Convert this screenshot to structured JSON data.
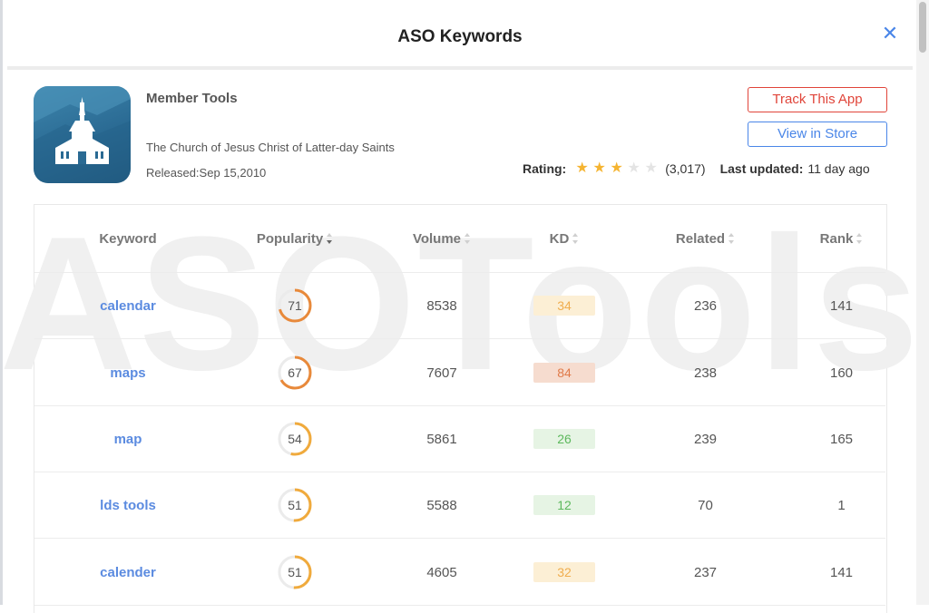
{
  "modal": {
    "title": "ASO Keywords",
    "close_icon": "close-icon"
  },
  "app": {
    "name": "Member Tools",
    "developer": "The Church of Jesus Christ of Latter-day Saints",
    "released": "Released:Sep 15,2010",
    "icon": "church-app-icon",
    "rating_label": "Rating:",
    "rating_stars": 3,
    "rating_max": 5,
    "rating_count": "(3,017)",
    "updated_label": "Last updated:",
    "updated_value": "11 day ago"
  },
  "actions": {
    "track_label": "Track This App",
    "store_label": "View in Store"
  },
  "watermark": "ASOTools",
  "table": {
    "headers": {
      "keyword": "Keyword",
      "popularity": "Popularity",
      "volume": "Volume",
      "kd": "KD",
      "related": "Related",
      "rank": "Rank"
    },
    "rows": [
      {
        "keyword": "calendar",
        "popularity": "71",
        "volume": "8538",
        "kd": "34",
        "related": "236",
        "rank": "141"
      },
      {
        "keyword": "maps",
        "popularity": "67",
        "volume": "7607",
        "kd": "84",
        "related": "238",
        "rank": "160"
      },
      {
        "keyword": "map",
        "popularity": "54",
        "volume": "5861",
        "kd": "26",
        "related": "239",
        "rank": "165"
      },
      {
        "keyword": "lds tools",
        "popularity": "51",
        "volume": "5588",
        "kd": "12",
        "related": "70",
        "rank": "1"
      },
      {
        "keyword": "calender",
        "popularity": "51",
        "volume": "4605",
        "kd": "32",
        "related": "237",
        "rank": "141"
      }
    ]
  },
  "colors": {
    "accent_blue": "#4a86e8",
    "track_red": "#e0453a",
    "star": "#f5b431",
    "ring_high": "#e8893a",
    "ring_mid": "#f0aa3c",
    "kd_low_bg": "#e6f4e4",
    "kd_low_fg": "#5cb85c",
    "kd_mid_bg": "#fcefd5",
    "kd_mid_fg": "#f0ad4e",
    "kd_high_bg": "#f6dccf",
    "kd_high_fg": "#e07b4a"
  }
}
